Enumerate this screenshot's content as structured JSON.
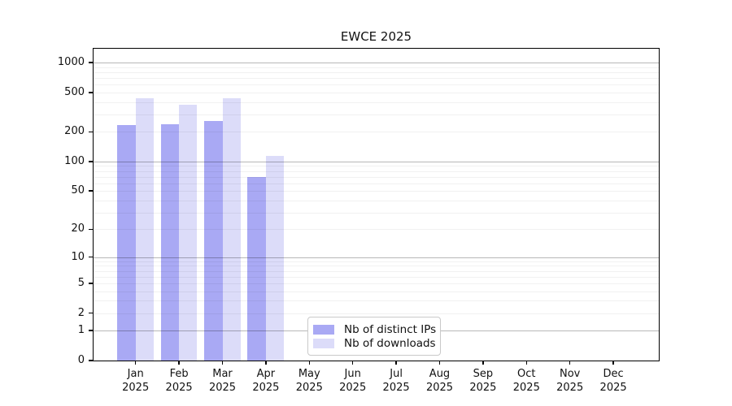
{
  "title": "EWCE 2025",
  "chart_data": {
    "type": "bar",
    "title": "EWCE 2025",
    "scale": "log10(value+1)",
    "categories": [
      "Jan",
      "Feb",
      "Mar",
      "Apr",
      "May",
      "Jun",
      "Jul",
      "Aug",
      "Sep",
      "Oct",
      "Nov",
      "Dec"
    ],
    "year_label": "2025",
    "series": [
      {
        "name": "Nb of distinct IPs",
        "color": "#a9a9f4",
        "values": [
          236,
          239,
          255,
          69,
          0,
          0,
          0,
          0,
          0,
          0,
          0,
          0
        ]
      },
      {
        "name": "Nb of downloads",
        "color": "#dcdcf9",
        "values": [
          438,
          372,
          436,
          114,
          0,
          0,
          0,
          0,
          0,
          0,
          0,
          0
        ]
      }
    ],
    "yticks": [
      1000,
      500,
      200,
      100,
      50,
      20,
      10,
      5,
      2,
      1,
      0
    ],
    "minor_gridlines": [
      2,
      3,
      4,
      5,
      6,
      7,
      8,
      9,
      20,
      30,
      40,
      50,
      60,
      70,
      80,
      90,
      200,
      300,
      400,
      500,
      600,
      700,
      800,
      900
    ],
    "major_gridlines": [
      1,
      10,
      100,
      1000
    ],
    "ylim": [
      0,
      1380
    ],
    "grid": true,
    "legend_position": "bottom-center-inside",
    "xlabel": "",
    "ylabel": ""
  }
}
